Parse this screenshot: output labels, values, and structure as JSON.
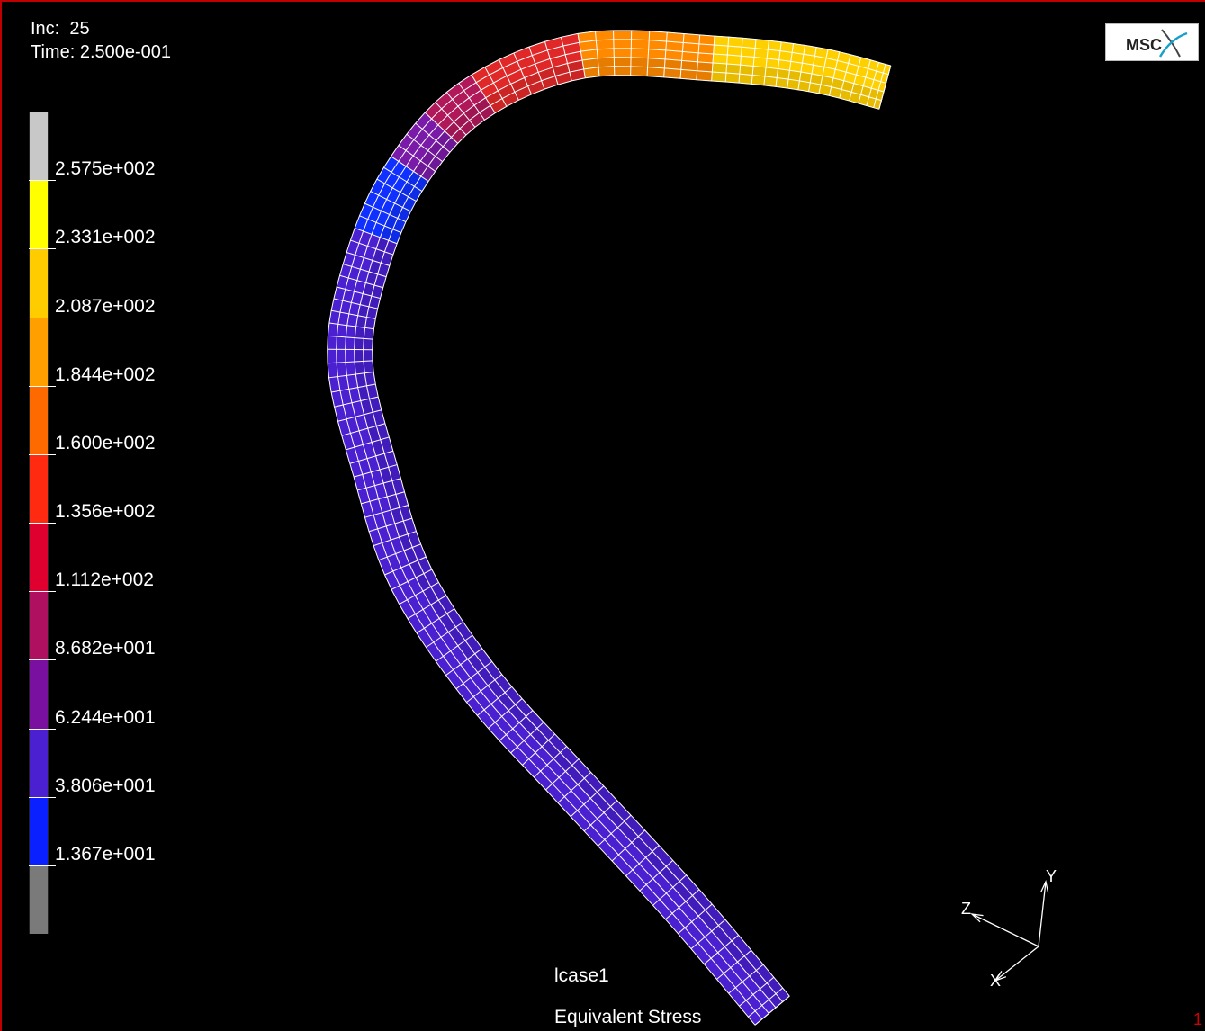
{
  "header": {
    "inc_label": "Inc:",
    "inc_value": "25",
    "time_label": "Time:",
    "time_value": "2.500e-001"
  },
  "logo": {
    "text": "MSC",
    "icon": "msc-swoosh-logo"
  },
  "legend": {
    "labels": [
      "2.575e+002",
      "2.331e+002",
      "2.087e+002",
      "1.844e+002",
      "1.600e+002",
      "1.356e+002",
      "1.112e+002",
      "8.682e+001",
      "6.244e+001",
      "3.806e+001",
      "1.367e+001"
    ],
    "colors": [
      "#c8c8c8",
      "#ffff00",
      "#ffcc00",
      "#ffa000",
      "#ff6a00",
      "#ff2a10",
      "#e00030",
      "#b01060",
      "#7a10a0",
      "#4a20d0",
      "#0a20ff",
      "#7a7a7a"
    ]
  },
  "model": {
    "colors": {
      "low": "#4a20d0",
      "blue": "#1030ff",
      "purple": "#7a1aa8",
      "magenta": "#b0185a",
      "red": "#e02828",
      "orange": "#ff8a00",
      "yellow": "#ffd000",
      "mesh": "#ffffff"
    }
  },
  "triad": {
    "x": "X",
    "y": "Y",
    "z": "Z"
  },
  "footer": {
    "case": "lcase1",
    "quantity": "Equivalent Stress"
  },
  "corner_mark": "1",
  "frame_color": "#c00000"
}
